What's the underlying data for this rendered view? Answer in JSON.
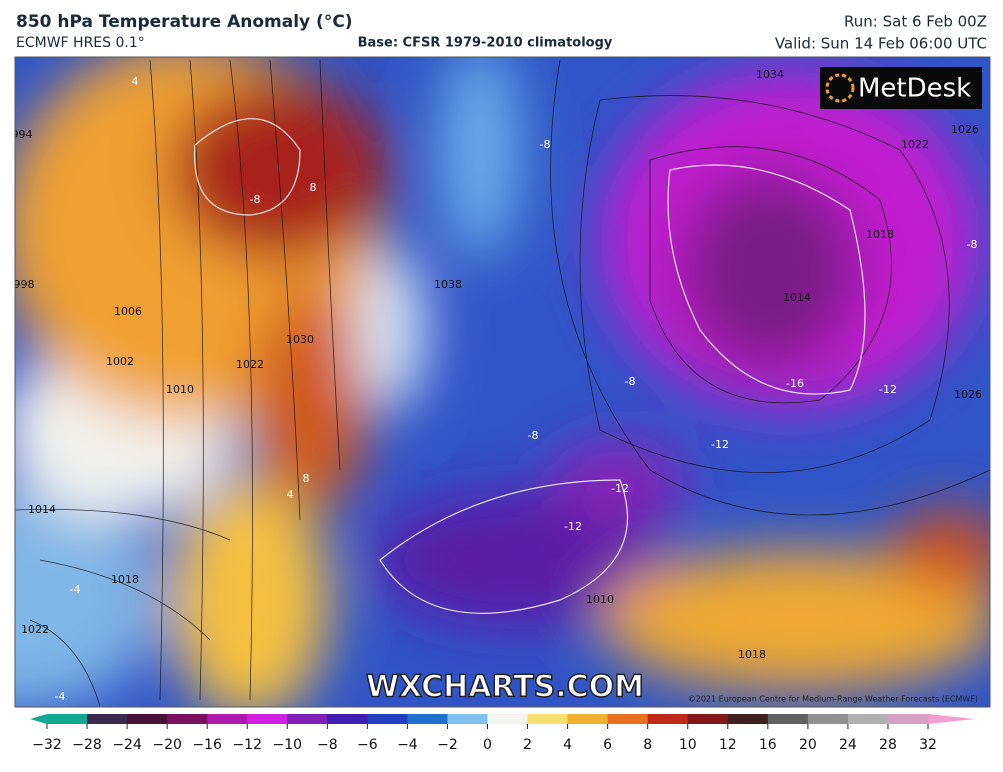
{
  "header": {
    "title": "850 hPa Temperature Anomaly (°C)",
    "model": "ECMWF HRES 0.1°",
    "base": "Base: CFSR 1979-2010 climatology",
    "run": "Run: Sat 6 Feb 00Z",
    "valid": "Valid: Sun 14 Feb 06:00 UTC"
  },
  "map": {
    "logo": "MetDesk",
    "watermark": "WXCHARTS.COM",
    "copyright": "©2021 European Centre for Medium-Range Weather Forecasts (ECMWF)",
    "contour_labels": [
      "994",
      "998",
      "1002",
      "1006",
      "1010",
      "1014",
      "1018",
      "1022",
      "1022",
      "1030",
      "1038",
      "1034",
      "1026",
      "1022",
      "1018",
      "1014",
      "1010",
      "1018",
      "1026"
    ],
    "anomaly_labels": [
      "-8",
      "8",
      "4",
      "-4",
      "-8",
      "-8",
      "-8",
      "-12",
      "-16",
      "-12",
      "-12",
      "-12",
      "-8",
      "4",
      "-4",
      "8"
    ]
  },
  "colorbar": {
    "ticks": [
      {
        "value": -32,
        "label": "−32"
      },
      {
        "value": -28,
        "label": "−28"
      },
      {
        "value": -24,
        "label": "−24"
      },
      {
        "value": -20,
        "label": "−20"
      },
      {
        "value": -16,
        "label": "−16"
      },
      {
        "value": -12,
        "label": "−12"
      },
      {
        "value": -10,
        "label": "−10"
      },
      {
        "value": -8,
        "label": "−8"
      },
      {
        "value": -6,
        "label": "−6"
      },
      {
        "value": -4,
        "label": "−4"
      },
      {
        "value": -2,
        "label": "−2"
      },
      0,
      2,
      4,
      6,
      8,
      10,
      12,
      16,
      20,
      24,
      28,
      32
    ]
  }
}
